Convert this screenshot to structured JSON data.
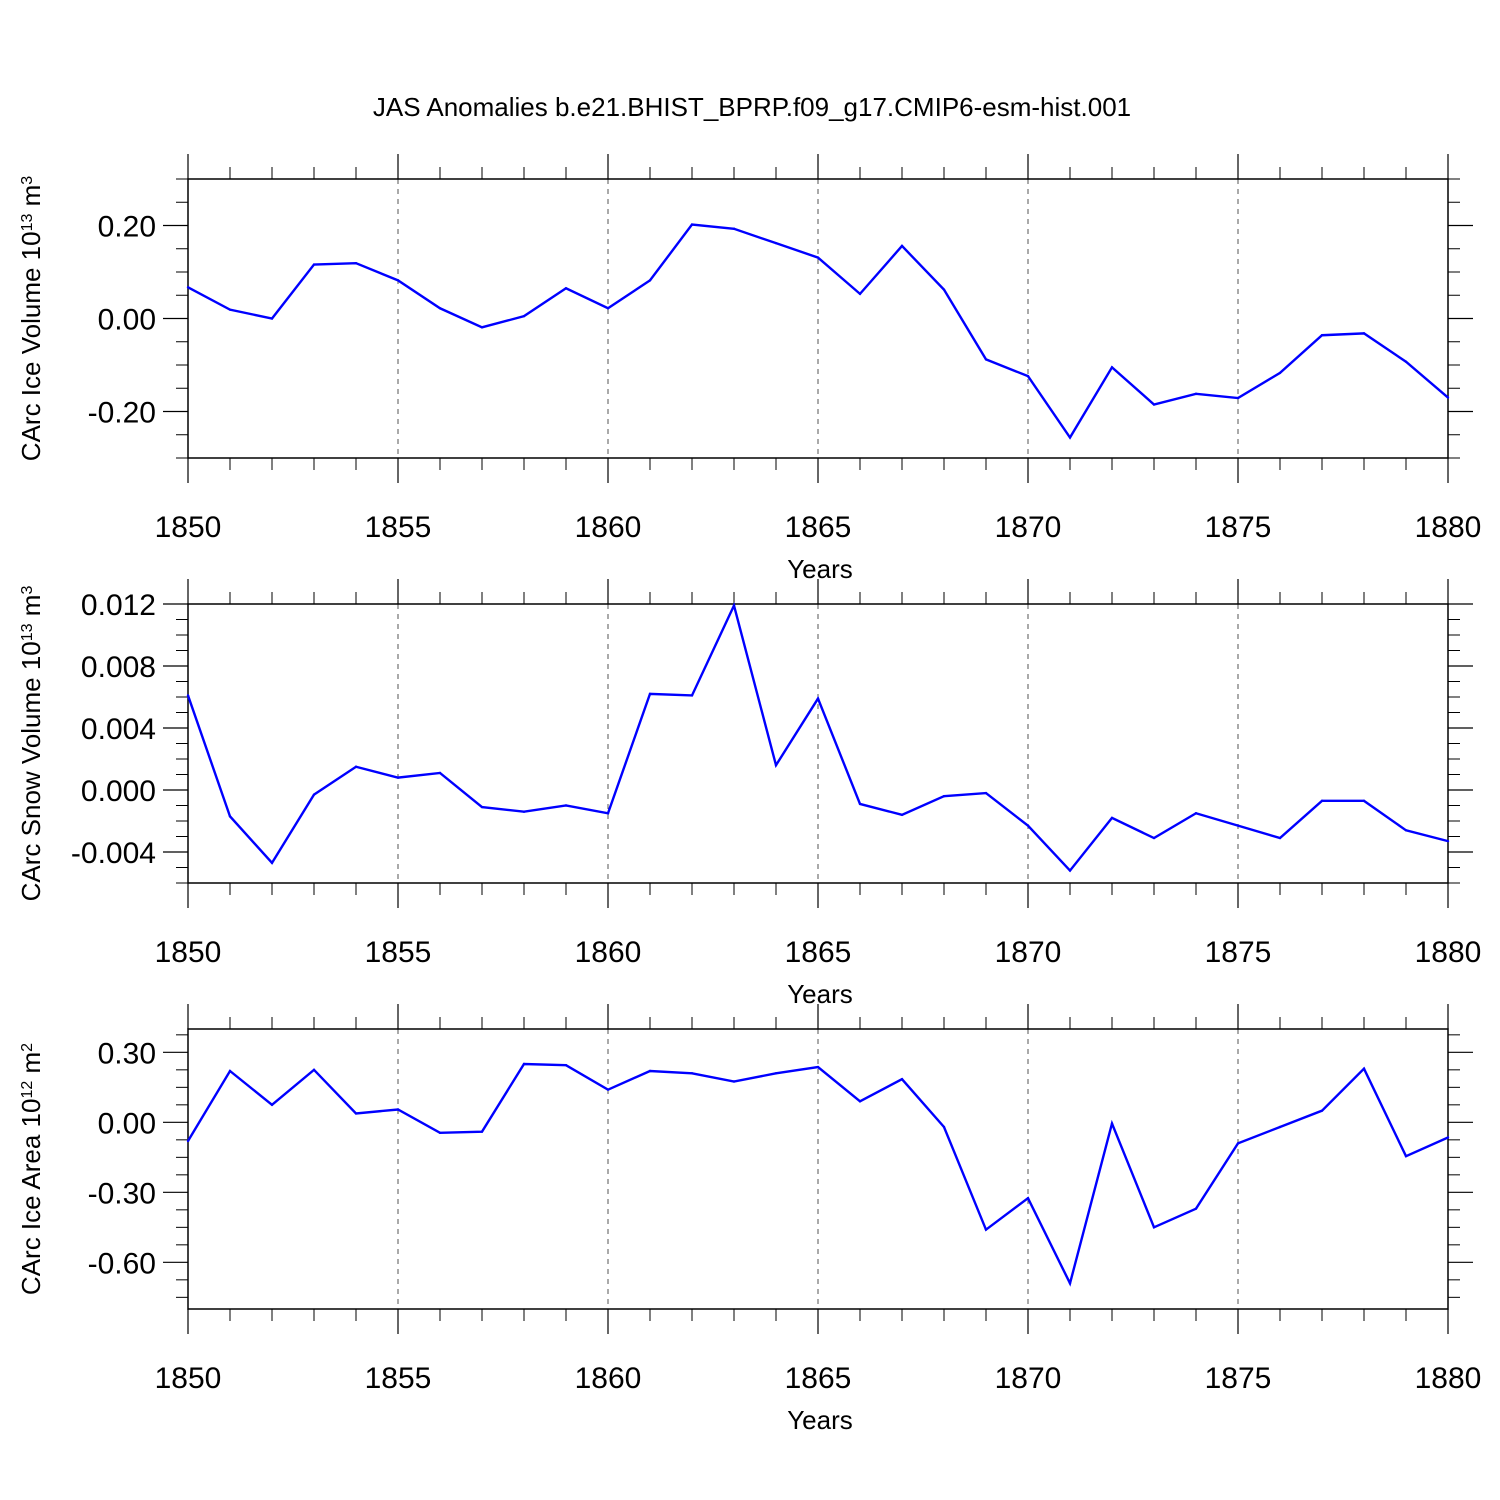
{
  "title": "JAS Anomalies b.e21.BHIST_BPRP.f09_g17.CMIP6-esm-hist.001",
  "colors": {
    "line": "#0000ff",
    "axis": "#000000",
    "grid": "#555555"
  },
  "chart_data": [
    {
      "type": "line",
      "ylabel_main": "CArc Ice Volume 10",
      "ylabel_exp": "13",
      "ylabel_unit": "m",
      "ylabel_unit_exp": "3",
      "xlabel": "Years",
      "xlim": [
        1850,
        1880
      ],
      "ylim": [
        -0.3,
        0.3
      ],
      "yticks": [
        -0.2,
        0.0,
        0.2
      ],
      "ytick_labels": [
        "-0.20",
        "0.00",
        "0.20"
      ],
      "xticks": [
        1850,
        1855,
        1860,
        1865,
        1870,
        1875,
        1880
      ],
      "xtick_labels": [
        "1850",
        "1855",
        "1860",
        "1865",
        "1870",
        "1875",
        "1880"
      ],
      "x": [
        1850,
        1851,
        1852,
        1853,
        1854,
        1855,
        1856,
        1857,
        1858,
        1859,
        1860,
        1861,
        1862,
        1863,
        1864,
        1865,
        1866,
        1867,
        1868,
        1869,
        1870,
        1871,
        1872,
        1873,
        1874,
        1875,
        1876,
        1877,
        1878,
        1879,
        1880
      ],
      "values": [
        0.067,
        0.019,
        0.0,
        0.116,
        0.119,
        0.082,
        0.022,
        -0.019,
        0.005,
        0.065,
        0.022,
        0.082,
        0.202,
        0.193,
        0.162,
        0.131,
        0.053,
        0.156,
        0.062,
        -0.088,
        -0.124,
        -0.256,
        -0.105,
        -0.185,
        -0.162,
        -0.171,
        -0.117,
        -0.036,
        -0.032,
        -0.093,
        -0.17
      ]
    },
    {
      "type": "line",
      "ylabel_main": "CArc Snow Volume 10",
      "ylabel_exp": "13",
      "ylabel_unit": "m",
      "ylabel_unit_exp": "3",
      "xlabel": "Years",
      "xlim": [
        1850,
        1880
      ],
      "ylim": [
        -0.006,
        0.012
      ],
      "yticks": [
        -0.004,
        0.0,
        0.004,
        0.008,
        0.012
      ],
      "ytick_labels": [
        "-0.004",
        "0.000",
        "0.004",
        "0.008",
        "0.012"
      ],
      "xticks": [
        1850,
        1855,
        1860,
        1865,
        1870,
        1875,
        1880
      ],
      "xtick_labels": [
        "1850",
        "1855",
        "1860",
        "1865",
        "1870",
        "1875",
        "1880"
      ],
      "x": [
        1850,
        1851,
        1852,
        1853,
        1854,
        1855,
        1856,
        1857,
        1858,
        1859,
        1860,
        1861,
        1862,
        1863,
        1864,
        1865,
        1866,
        1867,
        1868,
        1869,
        1870,
        1871,
        1872,
        1873,
        1874,
        1875,
        1876,
        1877,
        1878,
        1879,
        1880
      ],
      "values": [
        0.0061,
        -0.0017,
        -0.0047,
        -0.0003,
        0.0015,
        0.0008,
        0.0011,
        -0.0011,
        -0.0014,
        -0.001,
        -0.0015,
        0.0062,
        0.0061,
        0.0119,
        0.0016,
        0.0059,
        -0.0009,
        -0.0016,
        -0.0004,
        -0.0002,
        -0.0023,
        -0.0052,
        -0.0018,
        -0.0031,
        -0.0015,
        -0.0023,
        -0.0031,
        -0.0007,
        -0.0007,
        -0.0026,
        -0.0033
      ]
    },
    {
      "type": "line",
      "ylabel_main": "CArc Ice Area 10",
      "ylabel_exp": "12",
      "ylabel_unit": "m",
      "ylabel_unit_exp": "2",
      "xlabel": "Years",
      "xlim": [
        1850,
        1880
      ],
      "ylim": [
        -0.8,
        0.4
      ],
      "yticks": [
        -0.6,
        -0.3,
        0.0,
        0.3
      ],
      "ytick_labels": [
        "-0.60",
        "-0.30",
        "0.00",
        "0.30"
      ],
      "xticks": [
        1850,
        1855,
        1860,
        1865,
        1870,
        1875,
        1880
      ],
      "xtick_labels": [
        "1850",
        "1855",
        "1860",
        "1865",
        "1870",
        "1875",
        "1880"
      ],
      "x": [
        1850,
        1851,
        1852,
        1853,
        1854,
        1855,
        1856,
        1857,
        1858,
        1859,
        1860,
        1861,
        1862,
        1863,
        1864,
        1865,
        1866,
        1867,
        1868,
        1869,
        1870,
        1871,
        1872,
        1873,
        1874,
        1875,
        1876,
        1877,
        1878,
        1879,
        1880
      ],
      "values": [
        -0.08,
        0.22,
        0.075,
        0.225,
        0.038,
        0.055,
        -0.045,
        -0.04,
        0.25,
        0.245,
        0.14,
        0.22,
        0.21,
        0.175,
        0.21,
        0.237,
        0.09,
        0.185,
        -0.02,
        -0.46,
        -0.325,
        -0.69,
        -0.005,
        -0.45,
        -0.37,
        -0.09,
        -0.02,
        0.05,
        0.23,
        -0.145,
        -0.065
      ]
    }
  ]
}
